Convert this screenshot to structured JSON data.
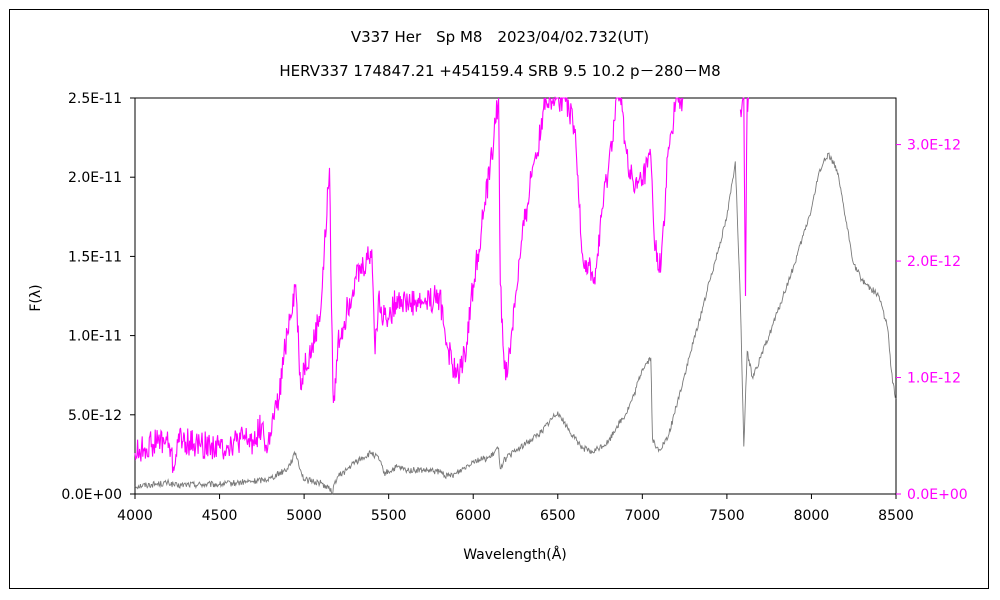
{
  "chart_data": {
    "type": "line",
    "title": "V337 Her　Sp M8　2023/04/02.732(UT)",
    "subtitle": "HERV337 174847.21 +454159.4 SRB 9.5 10.2 p－280－M8",
    "xlabel": "Wavelength(Å)",
    "ylabel": "F(λ)",
    "xlim": [
      4000,
      8500
    ],
    "ylim": [
      0,
      2.5e-11
    ],
    "y2lim": [
      0,
      3.4e-12
    ],
    "xticks": [
      "4000",
      "4500",
      "5000",
      "5500",
      "6000",
      "6500",
      "7000",
      "7500",
      "8000",
      "8500"
    ],
    "yticks": [
      "0.0E+00",
      "5.0E-12",
      "1.0E-11",
      "1.5E-11",
      "2.0E-11",
      "2.5E-11"
    ],
    "y2ticks": [
      "0.0E+00",
      "1.0E-12",
      "2.0E-12",
      "3.0E-12"
    ],
    "colors": {
      "primary": "#7a7a7a",
      "secondary": "#ff00ff",
      "axis": "#000000"
    },
    "series": [
      {
        "axis": "left",
        "color": "#7a7a7a",
        "x": [
          4000,
          4100,
          4200,
          4250,
          4300,
          4400,
          4500,
          4600,
          4700,
          4760,
          4800,
          4900,
          4950,
          4980,
          5000,
          5050,
          5100,
          5150,
          5170,
          5180,
          5200,
          5250,
          5300,
          5350,
          5400,
          5450,
          5470,
          5500,
          5550,
          5600,
          5700,
          5800,
          5850,
          5900,
          6000,
          6100,
          6150,
          6160,
          6180,
          6200,
          6300,
          6400,
          6500,
          6550,
          6600,
          6650,
          6700,
          6800,
          6850,
          6900,
          6950,
          7000,
          7050,
          7060,
          7080,
          7100,
          7150,
          7200,
          7300,
          7400,
          7500,
          7550,
          7580,
          7600,
          7620,
          7650,
          7700,
          7800,
          7900,
          8000,
          8050,
          8100,
          8150,
          8200,
          8250,
          8300,
          8350,
          8400,
          8450,
          8480,
          8500
        ],
        "y": [
          5e-13,
          6e-13,
          7e-13,
          5e-13,
          6e-13,
          6e-13,
          6e-13,
          7e-13,
          8e-13,
          9e-13,
          1e-12,
          1.6e-12,
          2.6e-12,
          1.5e-12,
          9e-13,
          8e-13,
          7e-13,
          3e-13,
          1e-13,
          7e-13,
          1.1e-12,
          1.5e-12,
          2e-12,
          2.3e-12,
          2.6e-12,
          2.1e-12,
          1.3e-12,
          1.4e-12,
          1.7e-12,
          1.5e-12,
          1.5e-12,
          1.4e-12,
          1.1e-12,
          1.3e-12,
          2.1e-12,
          2.3e-12,
          2.9e-12,
          1.6e-12,
          2.1e-12,
          2.3e-12,
          3.1e-12,
          3.9e-12,
          5.2e-12,
          4.3e-12,
          3.5e-12,
          2.9e-12,
          2.6e-12,
          3.3e-12,
          4.3e-12,
          5e-12,
          6.2e-12,
          7.9e-12,
          8.6e-12,
          3.5e-12,
          2.9e-12,
          2.8e-12,
          3.5e-12,
          5.5e-12,
          9.5e-12,
          1.35e-11,
          1.75e-11,
          2.1e-11,
          1.2e-11,
          3e-12,
          9e-12,
          7.4e-12,
          8.6e-12,
          1.15e-11,
          1.45e-11,
          1.8e-11,
          2.05e-11,
          2.15e-11,
          2.05e-11,
          1.75e-11,
          1.45e-11,
          1.35e-11,
          1.3e-11,
          1.25e-11,
          1.05e-11,
          7e-12,
          6e-12
        ]
      },
      {
        "axis": "right",
        "color": "#ff00ff",
        "x": [
          4000,
          4050,
          4100,
          4150,
          4200,
          4230,
          4250,
          4300,
          4350,
          4400,
          4450,
          4500,
          4550,
          4600,
          4650,
          4700,
          4750,
          4780,
          4800,
          4850,
          4900,
          4950,
          4980,
          5000,
          5050,
          5100,
          5150,
          5170,
          5180,
          5200,
          5250,
          5300,
          5350,
          5400,
          5420,
          5440,
          5460,
          5480,
          5500,
          5550,
          5600,
          5700,
          5800,
          5850,
          5900,
          5950,
          6000,
          6050,
          6100,
          6150,
          6160,
          6180,
          6200,
          6250,
          6300,
          6350,
          6400,
          6420,
          6450,
          6500,
          6520,
          6550,
          6600,
          6650,
          6700,
          6720,
          6750,
          6800,
          6850,
          6870,
          6900,
          6950,
          7000,
          7050,
          7070,
          7100,
          7130,
          7150,
          7200,
          7210,
          7230,
          7240
        ],
        "y": [
          3.5e-13,
          3.9e-13,
          4.3e-13,
          4.6e-13,
          4.4e-13,
          2e-13,
          4.7e-13,
          4.5e-13,
          4.3e-13,
          4.2e-13,
          4.2e-13,
          4e-13,
          4.2e-13,
          4.5e-13,
          4.7e-13,
          4.5e-13,
          6e-13,
          3.5e-13,
          5.3e-13,
          8e-13,
          1.4e-12,
          1.8e-12,
          9e-13,
          1.1e-12,
          1.25e-12,
          1.6e-12,
          2.8e-12,
          9e-13,
          8e-13,
          1.3e-12,
          1.55e-12,
          1.85e-12,
          1.95e-12,
          2.1e-12,
          1.2e-12,
          1.7e-12,
          1.5e-12,
          1.6e-12,
          1.5e-12,
          1.7e-12,
          1.65e-12,
          1.65e-12,
          1.7e-12,
          1.25e-12,
          1e-12,
          1.2e-12,
          1.8e-12,
          2.3e-12,
          2.8e-12,
          3.4e-12,
          1.8e-12,
          1.2e-12,
          1e-12,
          1.7e-12,
          2.3e-12,
          2.8e-12,
          3.1e-12,
          3.4e-12,
          3.4e-12,
          3.4e-12,
          3.4e-12,
          3.4e-12,
          3.1e-12,
          2e-12,
          1.9e-12,
          1.8e-12,
          2.3e-12,
          2.8e-12,
          3.4e-12,
          3.4e-12,
          3e-12,
          2.6e-12,
          2.7e-12,
          2.9e-12,
          2.2e-12,
          1.9e-12,
          2.3e-12,
          2.9e-12,
          3.4e-12,
          3.4e-12,
          3.4e-12,
          3.4e-12
        ]
      },
      {
        "axis": "right",
        "color": "#ff00ff",
        "x": [
          7580,
          7600,
          7610,
          7620,
          7630
        ],
        "y": [
          3.3e-12,
          3.4e-12,
          1.7e-12,
          3.4e-12,
          3.4e-12
        ]
      }
    ]
  }
}
